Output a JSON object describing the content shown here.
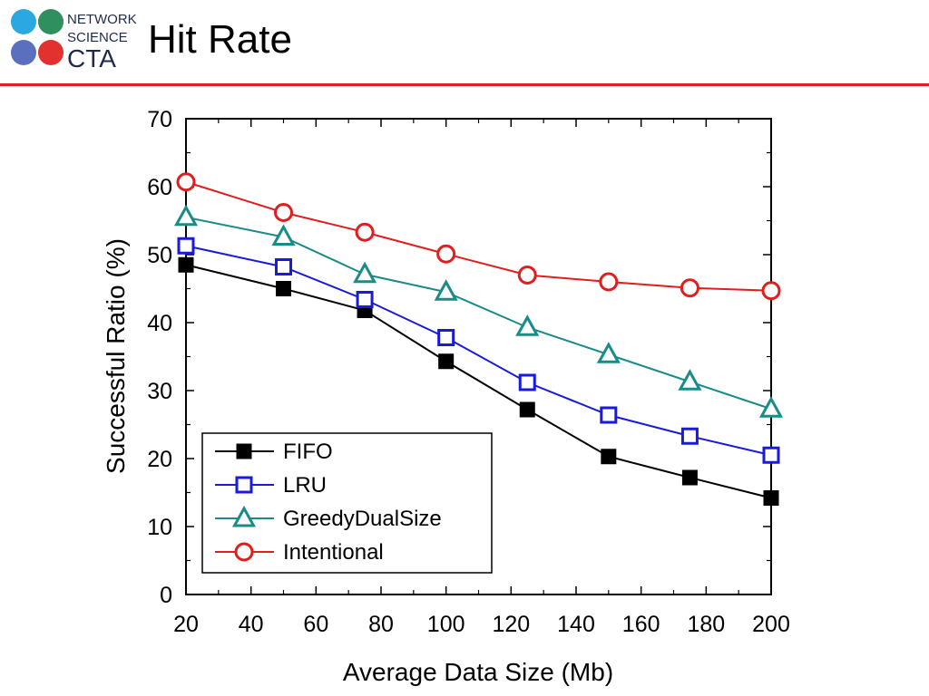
{
  "slide": {
    "title": "Hit Rate",
    "logo": {
      "lines": [
        "NETWORK",
        "SCIENCE",
        "CTA"
      ]
    },
    "rule_color": "#e31e24"
  },
  "chart_data": {
    "type": "line",
    "title": "",
    "xlabel": "Average Data Size (Mb)",
    "ylabel": "Successful Ratio (%)",
    "xlim": [
      20,
      200
    ],
    "ylim": [
      0,
      70
    ],
    "xticks": [
      20,
      40,
      60,
      80,
      100,
      120,
      140,
      160,
      180,
      200
    ],
    "yticks": [
      0,
      10,
      20,
      30,
      40,
      50,
      60,
      70
    ],
    "grid": false,
    "legend_position": "bottom-left",
    "x": [
      20,
      50,
      75,
      100,
      125,
      150,
      175,
      200
    ],
    "series": [
      {
        "name": "FIFO",
        "color": "#000000",
        "marker": "filled-square",
        "values": [
          48.5,
          45,
          41.8,
          34.3,
          27.2,
          20.3,
          17.2,
          14.2
        ]
      },
      {
        "name": "LRU",
        "color": "#1a1adc",
        "marker": "open-square",
        "values": [
          51.3,
          48.2,
          43.4,
          37.8,
          31.2,
          26.4,
          23.3,
          20.5
        ]
      },
      {
        "name": "GreedyDualSize",
        "color": "#1a8c88",
        "marker": "open-triangle",
        "values": [
          55.5,
          52.6,
          47.1,
          44.5,
          39.3,
          35.3,
          31.3,
          27.3
        ]
      },
      {
        "name": "Intentional",
        "color": "#e21d1d",
        "marker": "open-circle",
        "values": [
          60.7,
          56.2,
          53.3,
          50.1,
          47.0,
          46.0,
          45.1,
          44.7
        ]
      }
    ]
  }
}
